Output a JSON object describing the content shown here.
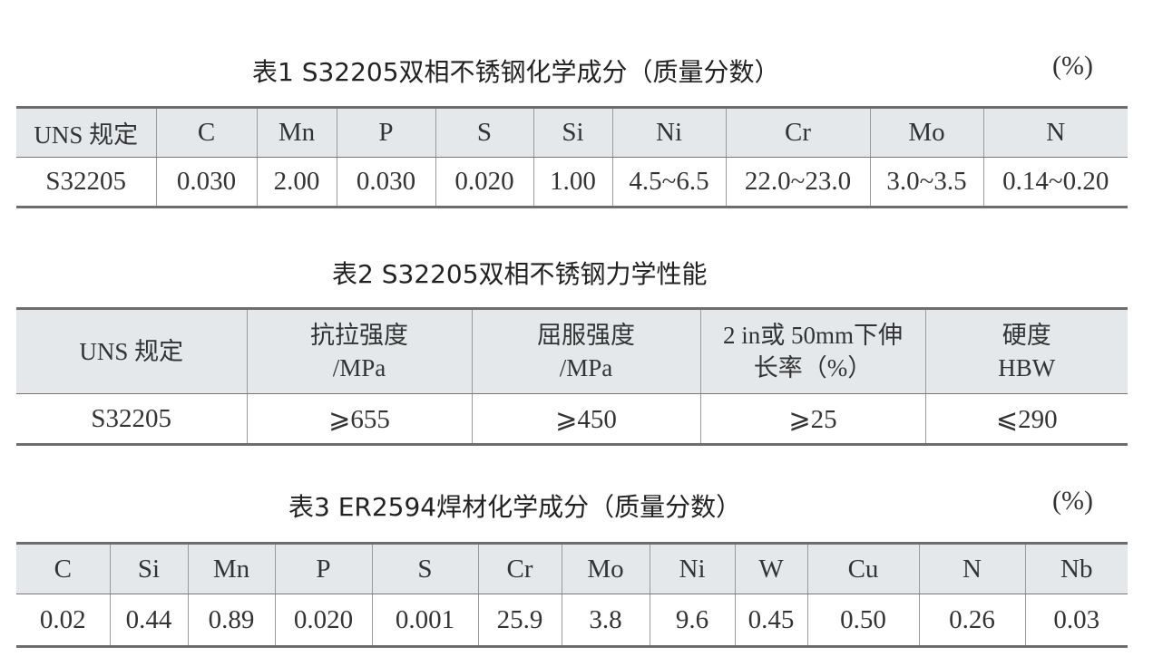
{
  "table1": {
    "title": "表1  S32205双相不锈钢化学成分（质量分数）",
    "unit": "(%)",
    "headers": [
      "UNS 规定",
      "C",
      "Mn",
      "P",
      "S",
      "Si",
      "Ni",
      "Cr",
      "Mo",
      "N"
    ],
    "row": [
      "S32205",
      "0.030",
      "2.00",
      "0.030",
      "0.020",
      "1.00",
      "4.5~6.5",
      "22.0~23.0",
      "3.0~3.5",
      "0.14~0.20"
    ]
  },
  "table2": {
    "title": "表2  S32205双相不锈钢力学性能",
    "headers": [
      {
        "line1": "UNS 规定",
        "line2": ""
      },
      {
        "line1": "抗拉强度",
        "line2": "/MPa"
      },
      {
        "line1": "屈服强度",
        "line2": "/MPa"
      },
      {
        "line1": "2 in或 50mm下伸",
        "line2": "长率（%）"
      },
      {
        "line1": "硬度",
        "line2": "HBW"
      }
    ],
    "row": [
      "S32205",
      "⩾655",
      "⩾450",
      "⩾25",
      "⩽290"
    ]
  },
  "table3": {
    "title": "表3  ER2594焊材化学成分（质量分数）",
    "unit": "(%)",
    "headers": [
      "C",
      "Si",
      "Mn",
      "P",
      "S",
      "Cr",
      "Mo",
      "Ni",
      "W",
      "Cu",
      "N",
      "Nb"
    ],
    "row": [
      "0.02",
      "0.44",
      "0.89",
      "0.020",
      "0.001",
      "25.9",
      "3.8",
      "9.6",
      "0.45",
      "0.50",
      "0.26",
      "0.03"
    ]
  }
}
